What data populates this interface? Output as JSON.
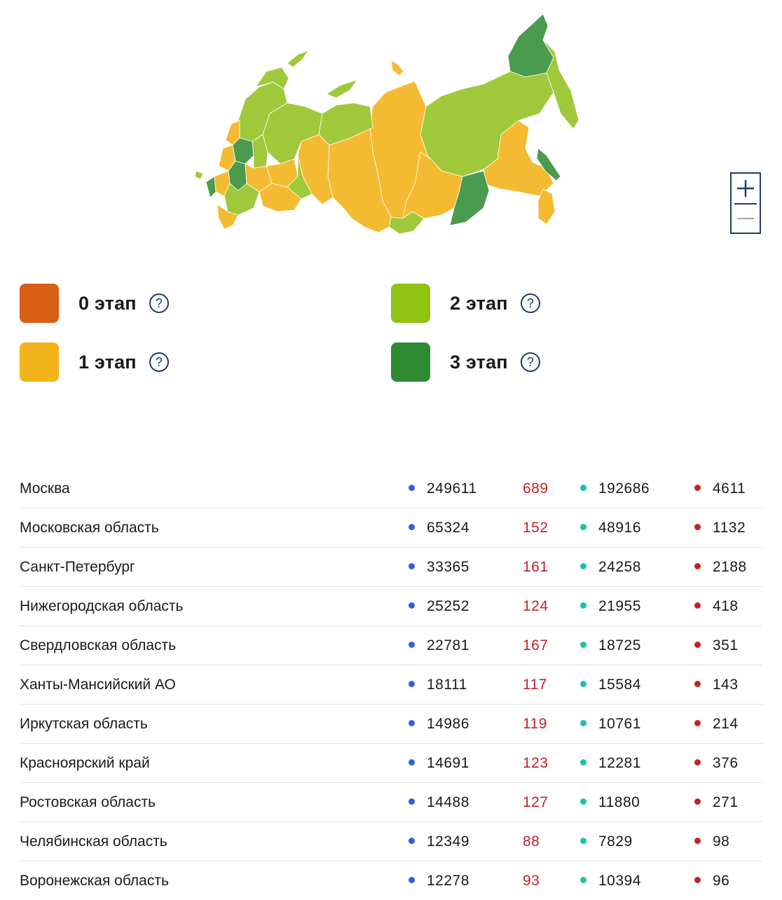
{
  "legend": {
    "items": [
      {
        "label": "0 этап",
        "color": "#d95f14",
        "help": "?"
      },
      {
        "label": "1 этап",
        "color": "#f2b41a",
        "help": "?"
      },
      {
        "label": "2 этап",
        "color": "#8fc214",
        "help": "?"
      },
      {
        "label": "3 этап",
        "color": "#2e8b34",
        "help": "?"
      }
    ]
  },
  "map": {
    "zoom_in_icon": "plus-icon",
    "zoom_out_icon": "minus-icon",
    "colors": {
      "stage1": "#f4bb32",
      "stage2": "#9fc93a",
      "stage3": "#4a9b4e"
    }
  },
  "indicator_colors": {
    "total": "#2f5fe0",
    "new": "#c42127",
    "recovered": "#1cc2a0",
    "deaths": "#c42127"
  },
  "rows": [
    {
      "region": "Москва",
      "total": "249611",
      "new": "689",
      "recovered": "192686",
      "deaths": "4611"
    },
    {
      "region": "Московская область",
      "total": "65324",
      "new": "152",
      "recovered": "48916",
      "deaths": "1132"
    },
    {
      "region": "Санкт-Петербург",
      "total": "33365",
      "new": "161",
      "recovered": "24258",
      "deaths": "2188"
    },
    {
      "region": "Нижегородская область",
      "total": "25252",
      "new": "124",
      "recovered": "21955",
      "deaths": "418"
    },
    {
      "region": "Свердловская область",
      "total": "22781",
      "new": "167",
      "recovered": "18725",
      "deaths": "351"
    },
    {
      "region": "Ханты-Мансийский АО",
      "total": "18111",
      "new": "117",
      "recovered": "15584",
      "deaths": "143"
    },
    {
      "region": "Иркутская область",
      "total": "14986",
      "new": "119",
      "recovered": "10761",
      "deaths": "214"
    },
    {
      "region": "Красноярский край",
      "total": "14691",
      "new": "123",
      "recovered": "12281",
      "deaths": "376"
    },
    {
      "region": "Ростовская область",
      "total": "14488",
      "new": "127",
      "recovered": "11880",
      "deaths": "271"
    },
    {
      "region": "Челябинская область",
      "total": "12349",
      "new": "88",
      "recovered": "7829",
      "deaths": "98"
    },
    {
      "region": "Воронежская область",
      "total": "12278",
      "new": "93",
      "recovered": "10394",
      "deaths": "96"
    }
  ]
}
